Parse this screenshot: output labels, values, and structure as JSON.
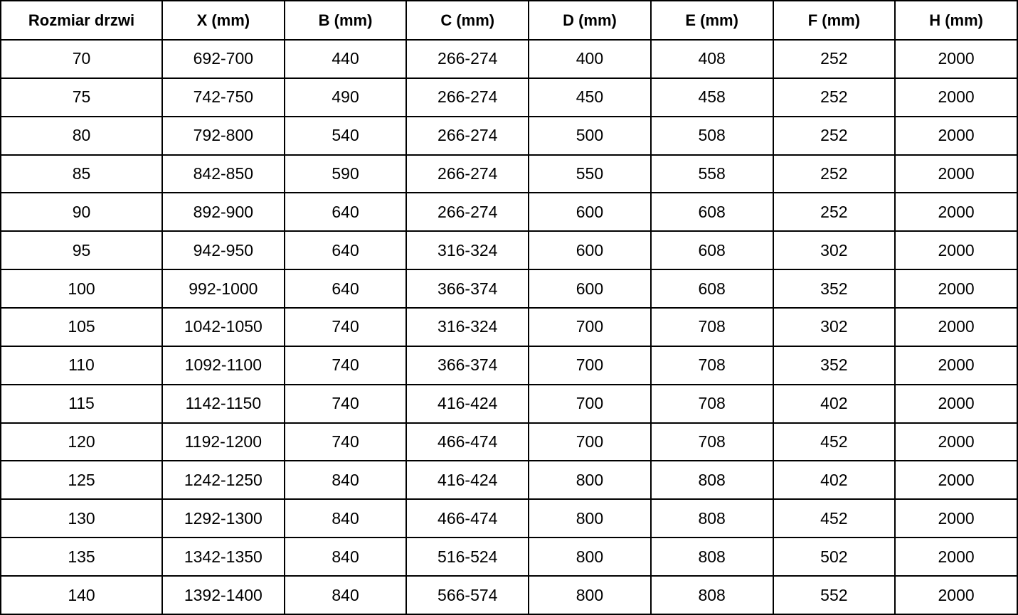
{
  "table": {
    "name": "door-dimensions-table",
    "columns": [
      "Rozmiar drzwi",
      "X (mm)",
      "B (mm)",
      "C (mm)",
      "D (mm)",
      "E (mm)",
      "F (mm)",
      "H (mm)"
    ],
    "rows": [
      [
        "70",
        "692-700",
        "440",
        "266-274",
        "400",
        "408",
        "252",
        "2000"
      ],
      [
        "75",
        "742-750",
        "490",
        "266-274",
        "450",
        "458",
        "252",
        "2000"
      ],
      [
        "80",
        "792-800",
        "540",
        "266-274",
        "500",
        "508",
        "252",
        "2000"
      ],
      [
        "85",
        "842-850",
        "590",
        "266-274",
        "550",
        "558",
        "252",
        "2000"
      ],
      [
        "90",
        "892-900",
        "640",
        "266-274",
        "600",
        "608",
        "252",
        "2000"
      ],
      [
        "95",
        "942-950",
        "640",
        "316-324",
        "600",
        "608",
        "302",
        "2000"
      ],
      [
        "100",
        "992-1000",
        "640",
        "366-374",
        "600",
        "608",
        "352",
        "2000"
      ],
      [
        "105",
        "1042-1050",
        "740",
        "316-324",
        "700",
        "708",
        "302",
        "2000"
      ],
      [
        "110",
        "1092-1100",
        "740",
        "366-374",
        "700",
        "708",
        "352",
        "2000"
      ],
      [
        "115",
        "1142-1150",
        "740",
        "416-424",
        "700",
        "708",
        "402",
        "2000"
      ],
      [
        "120",
        "1192-1200",
        "740",
        "466-474",
        "700",
        "708",
        "452",
        "2000"
      ],
      [
        "125",
        "1242-1250",
        "840",
        "416-424",
        "800",
        "808",
        "402",
        "2000"
      ],
      [
        "130",
        "1292-1300",
        "840",
        "466-474",
        "800",
        "808",
        "452",
        "2000"
      ],
      [
        "135",
        "1342-1350",
        "840",
        "516-524",
        "800",
        "808",
        "502",
        "2000"
      ],
      [
        "140",
        "1392-1400",
        "840",
        "566-574",
        "800",
        "808",
        "552",
        "2000"
      ]
    ]
  },
  "colors": {
    "border": "#000000",
    "text": "#000000",
    "background": "#ffffff"
  }
}
